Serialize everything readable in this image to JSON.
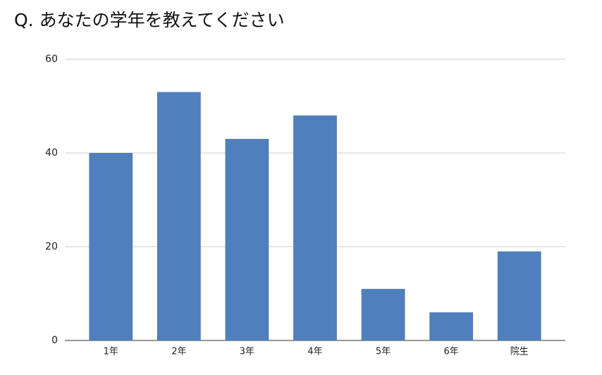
{
  "chart_data": {
    "type": "bar",
    "title": "Q. あなたの学年を教えてください",
    "categories": [
      "1年",
      "2年",
      "3年",
      "4年",
      "5年",
      "6年",
      "院生"
    ],
    "values": [
      40,
      53,
      43,
      48,
      11,
      6,
      19
    ],
    "color": "#4f7fbc",
    "ylim": [
      0,
      60
    ],
    "yticks": [
      0,
      20,
      40,
      60
    ],
    "grid": true
  }
}
